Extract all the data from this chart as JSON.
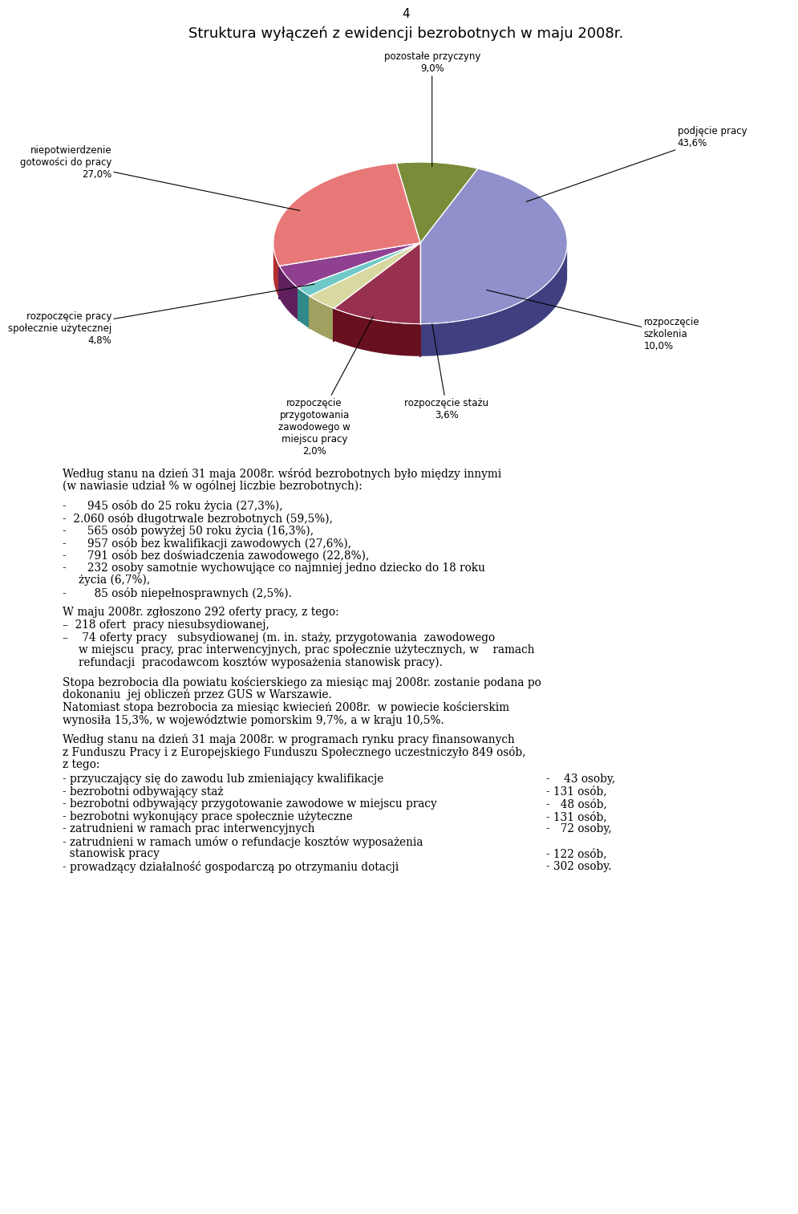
{
  "page_number": "4",
  "chart_title": "Struktura wyłączeń z ewidencji bezrobotnych w maju 2008r.",
  "slices": [
    {
      "label": "podjęcie pracy\n43,6%",
      "value": 43.6,
      "color": "#9090cc",
      "dark_color": "#404080",
      "short_label": "podjęcie pracy\n43,6%"
    },
    {
      "label": "pozostałe przyczyny\n9,0%",
      "value": 9.0,
      "color": "#7a8c3a",
      "dark_color": "#4a5c1a",
      "short_label": "pozostałe przyczyny\n9,0%"
    },
    {
      "label": "niepotwierdzenie\ngotowości do pracy\n27,0%",
      "value": 27.0,
      "color": "#e87878",
      "dark_color": "#b03030",
      "short_label": "niepotwierdzenie\ngotowości do pracy\n27,0%"
    },
    {
      "label": "rozpoczęcie pracy\nspołecznie użytecznej\n4,8%",
      "value": 4.8,
      "color": "#904090",
      "dark_color": "#602060",
      "short_label": "rozpoczęcie pracy\nspołecznie użytecznej\n4,8%"
    },
    {
      "label": "rozpoczęcie\nprzygotowania\nzawodowego w\nmiejscu pracy\n2,0%",
      "value": 2.0,
      "color": "#70c8c8",
      "dark_color": "#308888",
      "short_label": "rozpoczęcie\nprzygotowania\nzawodowego w\nmiejscu pracy\n2,0%"
    },
    {
      "label": "rozpoczęcie stażu\n3,6%",
      "value": 3.6,
      "color": "#d8d8a0",
      "dark_color": "#a0a060",
      "short_label": "rozpoczęcie stażu\n3,6%"
    },
    {
      "label": "rozpoczęcie\nszkolenia\n10,0%",
      "value": 10.0,
      "color": "#983050",
      "dark_color": "#681020",
      "short_label": "rozpoczęcie\nszkolenia\n10,0%"
    }
  ],
  "background_color": "#ffffff"
}
